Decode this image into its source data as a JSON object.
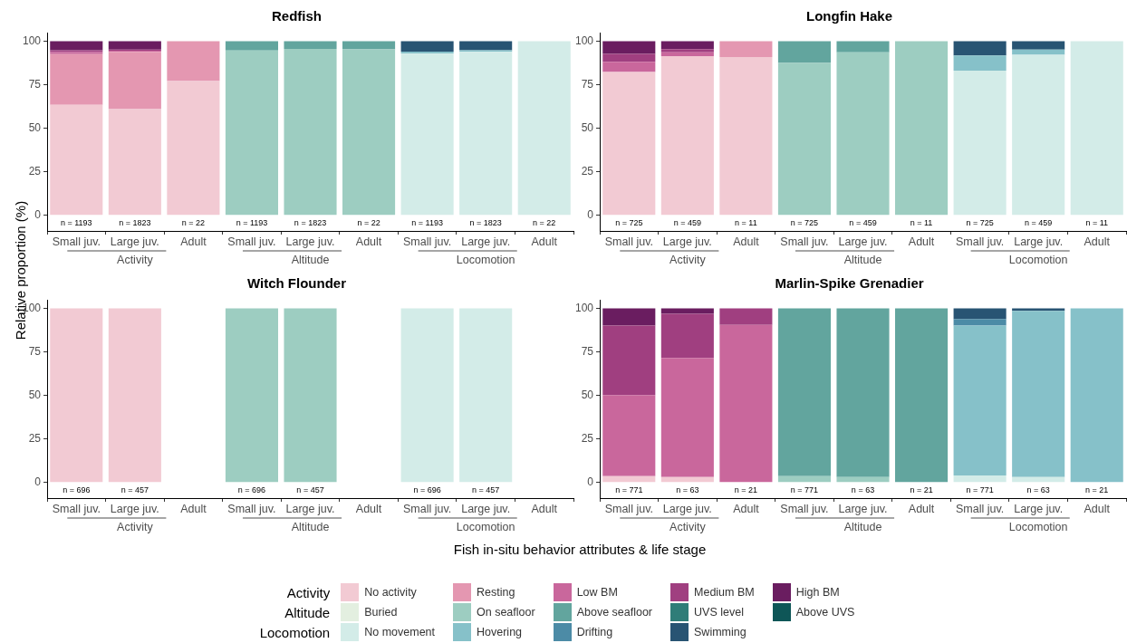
{
  "chart_data": [
    {
      "type": "bar",
      "title": "Redfish",
      "ylabel": "Relative proportion (%)",
      "stacked": true,
      "ylim": [
        -9,
        105
      ],
      "yticks": [
        0,
        25,
        50,
        75,
        100
      ],
      "grid": false,
      "legend": "bottom",
      "categories": [
        "Small juv.",
        "Large juv.",
        "Adult",
        "Small juv.",
        "Large juv.",
        "Adult",
        "Small juv.",
        "Large juv.",
        "Adult"
      ],
      "annotations": [
        "Activity",
        "Altitude",
        "Locomotion",
        "n = 1193",
        "n = 1823",
        "n = 22",
        "n = 1193",
        "n = 1823",
        "n = 22",
        "n = 1193",
        "n = 1823",
        "n = 22"
      ],
      "series": [
        {
          "name": "No activity",
          "color": "#f2cad3",
          "values": [
            63.5,
            61.0,
            77.1,
            null,
            null,
            null,
            null,
            null,
            null
          ]
        },
        {
          "name": "Resting",
          "color": "#e497b1",
          "values": [
            29.1,
            33.0,
            22.9,
            null,
            null,
            null,
            null,
            null,
            null
          ]
        },
        {
          "name": "Low BM",
          "color": "#c9679c",
          "values": [
            1.2,
            0.6,
            0,
            null,
            null,
            null,
            null,
            null,
            null
          ]
        },
        {
          "name": "Medium BM",
          "color": "#a03f80",
          "values": [
            1.1,
            0.6,
            0,
            null,
            null,
            null,
            null,
            null,
            null
          ]
        },
        {
          "name": "High BM",
          "color": "#6a1d60",
          "values": [
            5.1,
            4.8,
            0,
            null,
            null,
            null,
            null,
            null,
            null
          ]
        },
        {
          "name": "Buried",
          "color": "#e3efe0",
          "values": [
            null,
            null,
            null,
            0,
            0,
            0,
            null,
            null,
            null
          ]
        },
        {
          "name": "On seafloor",
          "color": "#9dcdc1",
          "values": [
            null,
            null,
            null,
            94.7,
            95.6,
            95.4,
            null,
            null,
            null
          ]
        },
        {
          "name": "Above seafloor",
          "color": "#62a59e",
          "values": [
            null,
            null,
            null,
            5.3,
            4.4,
            4.6,
            null,
            null,
            null
          ]
        },
        {
          "name": "UVS level",
          "color": "#2f7d78",
          "values": [
            null,
            null,
            null,
            0,
            0,
            0,
            null,
            null,
            null
          ]
        },
        {
          "name": "Above UVS",
          "color": "#0e5657",
          "values": [
            null,
            null,
            null,
            0,
            0,
            0,
            null,
            null,
            null
          ]
        },
        {
          "name": "No movement",
          "color": "#d3ece8",
          "values": [
            null,
            null,
            null,
            null,
            null,
            null,
            92.9,
            94.0,
            100
          ]
        },
        {
          "name": "Hovering",
          "color": "#86c1c9",
          "values": [
            null,
            null,
            null,
            null,
            null,
            null,
            1.2,
            0.9,
            0
          ]
        },
        {
          "name": "Drifting",
          "color": "#4c8ba6",
          "values": [
            null,
            null,
            null,
            null,
            null,
            null,
            0,
            0,
            0
          ]
        },
        {
          "name": "Swimming",
          "color": "#285473",
          "values": [
            null,
            null,
            null,
            null,
            null,
            null,
            5.9,
            5.1,
            0
          ]
        }
      ]
    },
    {
      "type": "bar",
      "title": "Longfin Hake",
      "stacked": true,
      "ylim": [
        -9,
        105
      ],
      "yticks": [
        0,
        25,
        50,
        75,
        100
      ],
      "grid": false,
      "categories": [
        "Small juv.",
        "Large juv.",
        "Adult",
        "Small juv.",
        "Large juv.",
        "Adult",
        "Small juv.",
        "Large juv.",
        "Adult"
      ],
      "annotations": [
        "Activity",
        "Altitude",
        "Locomotion",
        "n = 725",
        "n = 459",
        "n = 11",
        "n = 725",
        "n = 459",
        "n = 11",
        "n = 725",
        "n = 459",
        "n = 11"
      ],
      "series": [
        {
          "color": "#f2cad3",
          "values": [
            82.4,
            91.5,
            90.9,
            null,
            null,
            null,
            null,
            null,
            null
          ]
        },
        {
          "color": "#e497b1",
          "values": [
            0,
            0,
            9.1,
            null,
            null,
            null,
            null,
            null,
            null
          ]
        },
        {
          "color": "#c9679c",
          "values": [
            5.8,
            2.2,
            0,
            null,
            null,
            null,
            null,
            null,
            null
          ]
        },
        {
          "color": "#a03f80",
          "values": [
            4.6,
            1.8,
            0,
            null,
            null,
            null,
            null,
            null,
            null
          ]
        },
        {
          "color": "#6a1d60",
          "values": [
            7.2,
            4.5,
            0,
            null,
            null,
            null,
            null,
            null,
            null
          ]
        },
        {
          "color": "#e3efe0",
          "values": [
            null,
            null,
            null,
            0,
            0,
            0,
            null,
            null,
            null
          ]
        },
        {
          "color": "#9dcdc1",
          "values": [
            null,
            null,
            null,
            87.5,
            93.7,
            100,
            null,
            null,
            null
          ]
        },
        {
          "color": "#62a59e",
          "values": [
            null,
            null,
            null,
            12.5,
            6.3,
            0,
            null,
            null,
            null
          ]
        },
        {
          "color": "#2f7d78",
          "values": [
            null,
            null,
            null,
            0,
            0,
            0,
            null,
            null,
            null
          ]
        },
        {
          "color": "#0e5657",
          "values": [
            null,
            null,
            null,
            0,
            0,
            0,
            null,
            null,
            null
          ]
        },
        {
          "color": "#d3ece8",
          "values": [
            null,
            null,
            null,
            null,
            null,
            null,
            83.2,
            92.2,
            100
          ]
        },
        {
          "color": "#86c1c9",
          "values": [
            null,
            null,
            null,
            null,
            null,
            null,
            8.6,
            3.1,
            0
          ]
        },
        {
          "color": "#4c8ba6",
          "values": [
            null,
            null,
            null,
            null,
            null,
            null,
            0,
            0,
            0
          ]
        },
        {
          "color": "#285473",
          "values": [
            null,
            null,
            null,
            null,
            null,
            null,
            8.2,
            4.7,
            0
          ]
        }
      ]
    },
    {
      "type": "bar",
      "title": "Witch Flounder",
      "xlabel": "Fish in-situ behavior attributes & life stage",
      "stacked": true,
      "ylim": [
        -9,
        105
      ],
      "yticks": [
        0,
        25,
        50,
        75,
        100
      ],
      "grid": false,
      "categories": [
        "Small juv.",
        "Large juv.",
        "Adult",
        "Small juv.",
        "Large juv.",
        "Adult",
        "Small juv.",
        "Large juv.",
        "Adult"
      ],
      "annotations": [
        "Activity",
        "Altitude",
        "Locomotion",
        "n = 696",
        "n = 457",
        "n = 696",
        "n = 457",
        "n = 696",
        "n = 457"
      ],
      "series": [
        {
          "color": "#f2cad3",
          "values": [
            100,
            100,
            null,
            null,
            null,
            null,
            null,
            null,
            null
          ]
        },
        {
          "color": "#e497b1",
          "values": [
            0,
            0,
            null,
            null,
            null,
            null,
            null,
            null,
            null
          ]
        },
        {
          "color": "#c9679c",
          "values": [
            0,
            0,
            null,
            null,
            null,
            null,
            null,
            null,
            null
          ]
        },
        {
          "color": "#a03f80",
          "values": [
            0,
            0,
            null,
            null,
            null,
            null,
            null,
            null,
            null
          ]
        },
        {
          "color": "#6a1d60",
          "values": [
            0,
            0,
            null,
            null,
            null,
            null,
            null,
            null,
            null
          ]
        },
        {
          "color": "#e3efe0",
          "values": [
            null,
            null,
            null,
            0,
            0,
            null,
            null,
            null,
            null
          ]
        },
        {
          "color": "#9dcdc1",
          "values": [
            null,
            null,
            null,
            100,
            100,
            null,
            null,
            null,
            null
          ]
        },
        {
          "color": "#62a59e",
          "values": [
            null,
            null,
            null,
            0,
            0,
            null,
            null,
            null,
            null
          ]
        },
        {
          "color": "#2f7d78",
          "values": [
            null,
            null,
            null,
            0,
            0,
            null,
            null,
            null,
            null
          ]
        },
        {
          "color": "#0e5657",
          "values": [
            null,
            null,
            null,
            0,
            0,
            null,
            null,
            null,
            null
          ]
        },
        {
          "color": "#d3ece8",
          "values": [
            null,
            null,
            null,
            null,
            null,
            null,
            100,
            100,
            null
          ]
        },
        {
          "color": "#86c1c9",
          "values": [
            null,
            null,
            null,
            null,
            null,
            null,
            0,
            0,
            null
          ]
        },
        {
          "color": "#4c8ba6",
          "values": [
            null,
            null,
            null,
            null,
            null,
            null,
            0,
            0,
            null
          ]
        },
        {
          "color": "#285473",
          "values": [
            null,
            null,
            null,
            null,
            null,
            null,
            0,
            0,
            null
          ]
        }
      ]
    },
    {
      "type": "bar",
      "title": "Marlin-Spike Grenadier",
      "stacked": true,
      "ylim": [
        -9,
        105
      ],
      "yticks": [
        0,
        25,
        50,
        75,
        100
      ],
      "grid": false,
      "categories": [
        "Small juv.",
        "Large juv.",
        "Adult",
        "Small juv.",
        "Large juv.",
        "Adult",
        "Small juv.",
        "Large juv.",
        "Adult"
      ],
      "annotations": [
        "Activity",
        "Altitude",
        "Locomotion",
        "n = 771",
        "n = 63",
        "n = 21",
        "n = 771",
        "n = 63",
        "n = 21",
        "n = 771",
        "n = 63",
        "n = 21"
      ],
      "series": [
        {
          "color": "#f2cad3",
          "values": [
            3.6,
            3.1,
            0,
            null,
            null,
            null,
            null,
            null,
            null
          ]
        },
        {
          "color": "#e497b1",
          "values": [
            0,
            0,
            0,
            null,
            null,
            null,
            null,
            null,
            null
          ]
        },
        {
          "color": "#c9679c",
          "values": [
            46.6,
            68.5,
            90.6,
            null,
            null,
            null,
            null,
            null,
            null
          ]
        },
        {
          "color": "#a03f80",
          "values": [
            40.0,
            25.3,
            9.4,
            null,
            null,
            null,
            null,
            null,
            null
          ]
        },
        {
          "color": "#6a1d60",
          "values": [
            9.8,
            3.1,
            0,
            null,
            null,
            null,
            null,
            null,
            null
          ]
        },
        {
          "color": "#e3efe0",
          "values": [
            null,
            null,
            null,
            0,
            0,
            0,
            null,
            null,
            null
          ]
        },
        {
          "color": "#9dcdc1",
          "values": [
            null,
            null,
            null,
            3.6,
            3.1,
            0,
            null,
            null,
            null
          ]
        },
        {
          "color": "#62a59e",
          "values": [
            null,
            null,
            null,
            96.4,
            96.9,
            100,
            null,
            null,
            null
          ]
        },
        {
          "color": "#2f7d78",
          "values": [
            null,
            null,
            null,
            0,
            0,
            0,
            null,
            null,
            null
          ]
        },
        {
          "color": "#0e5657",
          "values": [
            null,
            null,
            null,
            0,
            0,
            0,
            null,
            null,
            null
          ]
        },
        {
          "color": "#d3ece8",
          "values": [
            null,
            null,
            null,
            null,
            null,
            null,
            4.0,
            3.1,
            0
          ]
        },
        {
          "color": "#86c1c9",
          "values": [
            null,
            null,
            null,
            null,
            null,
            null,
            86.2,
            95.5,
            100
          ]
        },
        {
          "color": "#4c8ba6",
          "values": [
            null,
            null,
            null,
            null,
            null,
            null,
            3.8,
            0,
            0
          ]
        },
        {
          "color": "#285473",
          "values": [
            null,
            null,
            null,
            null,
            null,
            null,
            6.0,
            1.4,
            0
          ]
        }
      ]
    }
  ]
}
